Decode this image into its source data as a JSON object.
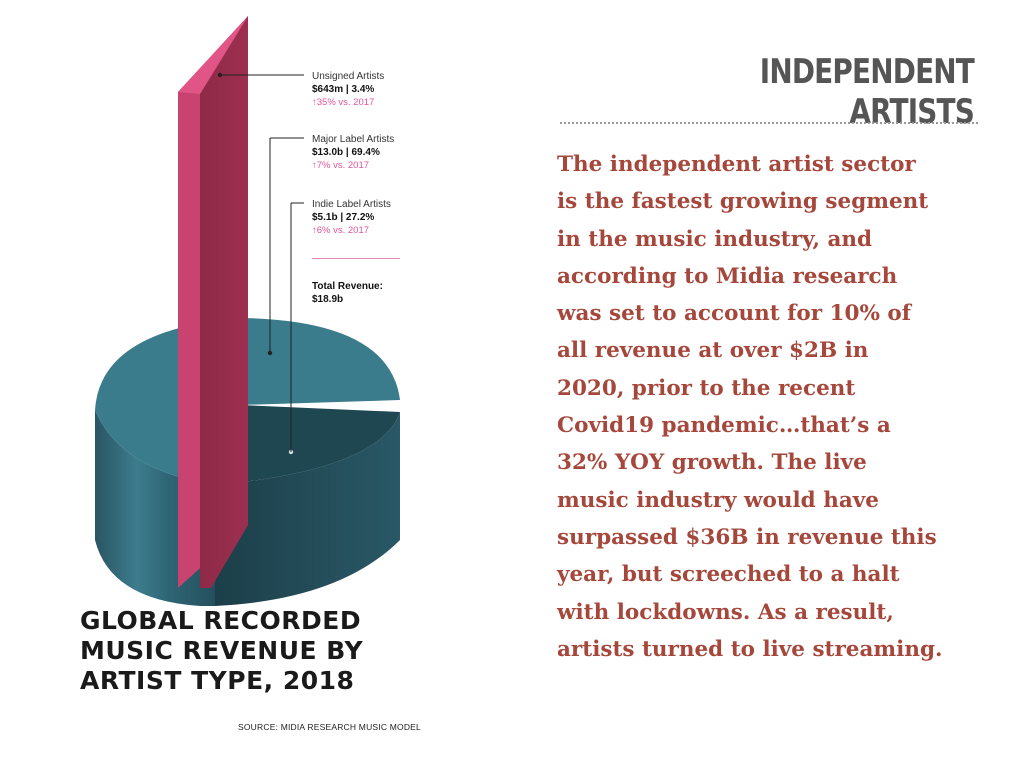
{
  "slide": {
    "title": "INDEPENDENT ARTISTS",
    "body_lines": [
      "The independent artist sector",
      "is the fastest growing segment",
      "in the music industry, and",
      "according to Midia research",
      "was set to account for 10% of",
      "all revenue at over $2B in",
      "2020, prior to the recent",
      "Covid19 pandemic…that’s a",
      "32% YOY growth.  The live",
      "music industry would have",
      "surpassed $36B in revenue this",
      "year, but screeched to a halt",
      "with lockdowns. As a result,",
      "artists turned to live streaming."
    ]
  },
  "chart_data": {
    "type": "pie",
    "title": "GLOBAL RECORDED\nMUSIC REVENUE BY\nARTIST TYPE, 2018",
    "source": "SOURCE: MIDIA RESEARCH MUSIC MODEL",
    "colors": {
      "unsigned": "#c8436f",
      "major": "#3a7b8c",
      "indie": "#1f4752"
    },
    "slices": [
      {
        "key": "unsigned",
        "name": "Unsigned Artists",
        "revenue": "$643m",
        "share": 3.4,
        "value_label": "$643m | 3.4%",
        "change": "↑35% vs. 2017"
      },
      {
        "key": "major",
        "name": "Major Label Artists",
        "revenue": "$13.0b",
        "share": 69.4,
        "value_label": "$13.0b | 69.4%",
        "change": "↑7% vs. 2017"
      },
      {
        "key": "indie",
        "name": "Indie Label Artists",
        "revenue": "$5.1b",
        "share": 27.2,
        "value_label": "$5.1b | 27.2%",
        "change": "↑6% vs. 2017"
      }
    ],
    "total": {
      "label": "Total Revenue:",
      "value": "$18.9b"
    }
  }
}
